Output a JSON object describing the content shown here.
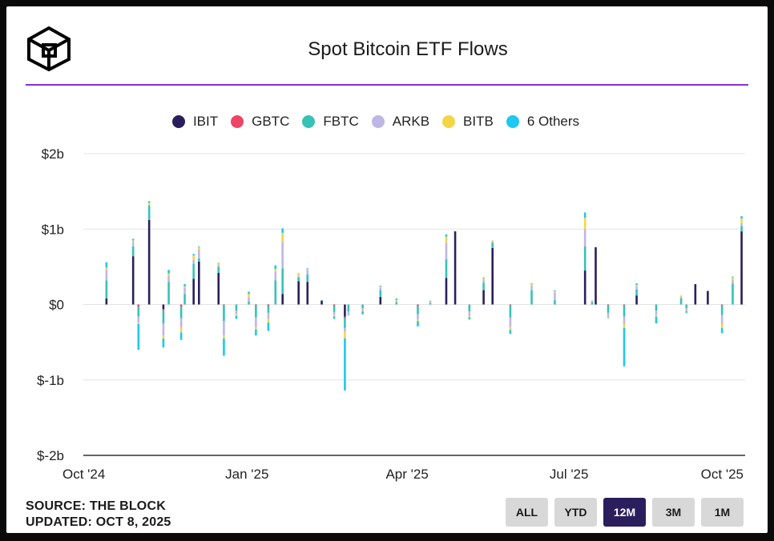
{
  "header": {
    "title": "Spot Bitcoin ETF Flows",
    "logo_icon": "the-block-cube-logo-icon"
  },
  "colors": {
    "accent_rule": "#8b2fd0",
    "IBIT": "#2a1f5c",
    "GBTC": "#ef4466",
    "FBTC": "#36c2b4",
    "ARKB": "#bfb6e6",
    "BITB": "#f4d544",
    "Others": "#1ec8f0"
  },
  "legend": [
    {
      "label": "IBIT",
      "color": "#2a1f5c"
    },
    {
      "label": "GBTC",
      "color": "#ef4466"
    },
    {
      "label": "FBTC",
      "color": "#36c2b4"
    },
    {
      "label": "ARKB",
      "color": "#bfb6e6"
    },
    {
      "label": "BITB",
      "color": "#f4d544"
    },
    {
      "label": "6 Others",
      "color": "#1ec8f0"
    }
  ],
  "footer": {
    "source": "SOURCE: THE BLOCK",
    "updated": "UPDATED: OCT 8, 2025"
  },
  "range_buttons": [
    {
      "label": "ALL",
      "active": false
    },
    {
      "label": "YTD",
      "active": false
    },
    {
      "label": "12M",
      "active": true
    },
    {
      "label": "3M",
      "active": false
    },
    {
      "label": "1M",
      "active": false
    }
  ],
  "chart_data": {
    "type": "bar",
    "stacked": true,
    "title": "Spot Bitcoin ETF Flows",
    "unit": "USD billions",
    "ylim": [
      -2,
      2
    ],
    "y_ticks": [
      {
        "value": 2,
        "label": "$2b"
      },
      {
        "value": 1,
        "label": "$1b"
      },
      {
        "value": 0,
        "label": "$0"
      },
      {
        "value": -1,
        "label": "$-1b"
      },
      {
        "value": -2,
        "label": "$-2b"
      }
    ],
    "x_ticks": [
      {
        "date": "2024-10-01",
        "label": "Oct '24"
      },
      {
        "date": "2025-01-01",
        "label": "Jan '25"
      },
      {
        "date": "2025-04-01",
        "label": "Apr '25"
      },
      {
        "date": "2025-07-01",
        "label": "Jul '25"
      },
      {
        "date": "2025-10-01",
        "label": "Oct '25"
      }
    ],
    "series_names": [
      "IBIT",
      "GBTC",
      "FBTC",
      "ARKB",
      "BITB",
      "6 Others"
    ],
    "grid": true,
    "legend_position": "top",
    "data": [
      {
        "date": "2024-10-14",
        "flows": [
          0.08,
          0.0,
          0.24,
          0.14,
          0.03,
          0.07
        ]
      },
      {
        "date": "2024-10-29",
        "flows": [
          0.64,
          0.0,
          0.13,
          0.06,
          0.02,
          0.02
        ]
      },
      {
        "date": "2024-11-01",
        "flows": [
          0.0,
          -0.03,
          -0.13,
          -0.08,
          -0.02,
          -0.34
        ]
      },
      {
        "date": "2024-11-07",
        "flows": [
          1.12,
          0.0,
          0.19,
          0.01,
          0.03,
          0.02
        ]
      },
      {
        "date": "2024-11-15",
        "flows": [
          -0.06,
          -0.02,
          -0.17,
          -0.16,
          -0.04,
          -0.12
        ]
      },
      {
        "date": "2024-11-18",
        "flows": [
          0.0,
          0.0,
          0.3,
          0.08,
          0.03,
          0.05
        ]
      },
      {
        "date": "2024-11-25",
        "flows": [
          0.0,
          -0.03,
          -0.15,
          -0.13,
          -0.06,
          -0.1
        ]
      },
      {
        "date": "2024-11-27",
        "flows": [
          0.0,
          0.0,
          0.14,
          0.08,
          0.02,
          0.03
        ]
      },
      {
        "date": "2024-12-02",
        "flows": [
          0.34,
          0.0,
          0.2,
          0.05,
          0.06,
          0.02
        ]
      },
      {
        "date": "2024-12-05",
        "flows": [
          0.57,
          0.0,
          0.04,
          0.12,
          0.03,
          0.01
        ]
      },
      {
        "date": "2024-12-16",
        "flows": [
          0.42,
          0.0,
          0.08,
          0.02,
          0.02,
          0.01
        ]
      },
      {
        "date": "2024-12-19",
        "flows": [
          0.0,
          -0.01,
          -0.21,
          -0.19,
          -0.04,
          -0.23
        ]
      },
      {
        "date": "2024-12-26",
        "flows": [
          0.0,
          0.0,
          -0.08,
          -0.05,
          -0.02,
          -0.04
        ]
      },
      {
        "date": "2025-01-02",
        "flows": [
          0.0,
          0.0,
          0.04,
          0.05,
          0.05,
          0.03
        ]
      },
      {
        "date": "2025-01-06",
        "flows": [
          0.0,
          -0.01,
          -0.16,
          -0.13,
          -0.03,
          -0.08
        ]
      },
      {
        "date": "2025-01-13",
        "flows": [
          0.0,
          -0.02,
          -0.09,
          -0.08,
          -0.05,
          -0.11
        ]
      },
      {
        "date": "2025-01-17",
        "flows": [
          0.0,
          0.0,
          0.32,
          0.11,
          0.04,
          0.05
        ]
      },
      {
        "date": "2025-01-21",
        "flows": [
          0.14,
          0.0,
          0.34,
          0.35,
          0.12,
          0.06
        ]
      },
      {
        "date": "2025-01-30",
        "flows": [
          0.31,
          0.0,
          0.05,
          0.02,
          0.04,
          0.0
        ]
      },
      {
        "date": "2025-02-04",
        "flows": [
          0.3,
          0.0,
          0.1,
          0.06,
          0.01,
          0.01
        ]
      },
      {
        "date": "2025-02-12",
        "flows": [
          0.05,
          0.0,
          0.01,
          0.0,
          0.0,
          0.0
        ]
      },
      {
        "date": "2025-02-19",
        "flows": [
          0.0,
          -0.02,
          -0.08,
          -0.04,
          -0.02,
          -0.03
        ]
      },
      {
        "date": "2025-02-25",
        "flows": [
          -0.16,
          -0.02,
          -0.13,
          -0.05,
          -0.09,
          -0.69
        ]
      },
      {
        "date": "2025-02-27",
        "flows": [
          0.0,
          0.0,
          -0.09,
          -0.04,
          0.0,
          -0.01
        ]
      },
      {
        "date": "2025-03-07",
        "flows": [
          0.0,
          0.0,
          -0.05,
          -0.03,
          -0.01,
          -0.04
        ]
      },
      {
        "date": "2025-03-17",
        "flows": [
          0.1,
          0.0,
          0.09,
          0.03,
          0.02,
          0.01
        ]
      },
      {
        "date": "2025-03-26",
        "flows": [
          0.0,
          0.0,
          0.03,
          0.02,
          0.01,
          0.02
        ]
      },
      {
        "date": "2025-04-07",
        "flows": [
          0.0,
          -0.02,
          -0.11,
          -0.07,
          -0.02,
          -0.07
        ]
      },
      {
        "date": "2025-04-14",
        "flows": [
          0.0,
          0.0,
          0.02,
          0.01,
          0.01,
          0.01
        ]
      },
      {
        "date": "2025-04-23",
        "flows": [
          0.35,
          0.0,
          0.25,
          0.22,
          0.08,
          0.03
        ]
      },
      {
        "date": "2025-04-28",
        "flows": [
          0.97,
          0.0,
          0.0,
          0.0,
          0.0,
          0.0
        ]
      },
      {
        "date": "2025-05-06",
        "flows": [
          0.0,
          0.0,
          -0.09,
          -0.06,
          -0.02,
          -0.03
        ]
      },
      {
        "date": "2025-05-14",
        "flows": [
          0.19,
          0.0,
          0.1,
          0.04,
          0.02,
          0.01
        ]
      },
      {
        "date": "2025-05-19",
        "flows": [
          0.75,
          0.0,
          0.07,
          0.02,
          0.01,
          0.0
        ]
      },
      {
        "date": "2025-05-29",
        "flows": [
          0.0,
          -0.01,
          -0.16,
          -0.13,
          -0.04,
          -0.05
        ]
      },
      {
        "date": "2025-06-10",
        "flows": [
          0.0,
          0.0,
          0.19,
          0.06,
          0.02,
          0.01
        ]
      },
      {
        "date": "2025-06-23",
        "flows": [
          0.0,
          0.0,
          0.06,
          0.1,
          0.02,
          0.01
        ]
      },
      {
        "date": "2025-07-10",
        "flows": [
          0.45,
          0.0,
          0.32,
          0.23,
          0.15,
          0.07
        ]
      },
      {
        "date": "2025-07-14",
        "flows": [
          0.0,
          0.0,
          0.03,
          0.01,
          0.0,
          0.01
        ]
      },
      {
        "date": "2025-07-16",
        "flows": [
          0.76,
          0.0,
          0.0,
          0.0,
          0.0,
          0.0
        ]
      },
      {
        "date": "2025-07-23",
        "flows": [
          0.0,
          -0.01,
          -0.1,
          -0.05,
          -0.01,
          -0.01
        ]
      },
      {
        "date": "2025-08-01",
        "flows": [
          0.0,
          -0.01,
          -0.15,
          -0.1,
          -0.05,
          -0.51
        ]
      },
      {
        "date": "2025-08-08",
        "flows": [
          0.12,
          0.0,
          0.08,
          0.04,
          0.02,
          0.02
        ]
      },
      {
        "date": "2025-08-19",
        "flows": [
          0.0,
          0.0,
          -0.08,
          -0.06,
          -0.02,
          -0.09
        ]
      },
      {
        "date": "2025-09-02",
        "flows": [
          0.0,
          0.0,
          0.08,
          0.02,
          0.02,
          0.0
        ]
      },
      {
        "date": "2025-09-05",
        "flows": [
          0.0,
          0.0,
          -0.05,
          -0.03,
          -0.01,
          -0.02
        ]
      },
      {
        "date": "2025-09-10",
        "flows": [
          0.27,
          0.0,
          0.0,
          0.0,
          0.0,
          0.0
        ]
      },
      {
        "date": "2025-09-17",
        "flows": [
          0.18,
          0.0,
          0.0,
          0.0,
          0.0,
          0.0
        ]
      },
      {
        "date": "2025-09-25",
        "flows": [
          0.0,
          -0.01,
          -0.13,
          -0.12,
          -0.05,
          -0.07
        ]
      },
      {
        "date": "2025-10-01",
        "flows": [
          0.0,
          0.0,
          0.28,
          0.05,
          0.03,
          0.01
        ]
      },
      {
        "date": "2025-10-06",
        "flows": [
          0.97,
          0.0,
          0.07,
          0.04,
          0.06,
          0.03
        ]
      }
    ]
  }
}
